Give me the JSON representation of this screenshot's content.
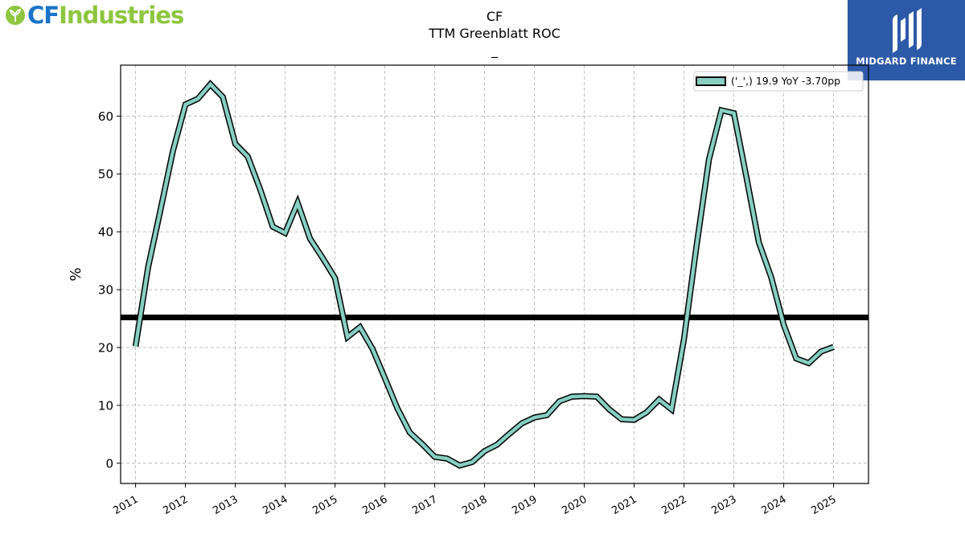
{
  "header": {
    "company_logo_cf": "CF",
    "company_logo_industries": "Industries",
    "badge_text": "MIDGARD FINANCE"
  },
  "colors": {
    "line_fill": "#86cfc2",
    "line_outline": "#000000",
    "reference_line": "#000000",
    "logo_blue": "#1a73c8",
    "logo_green": "#8dc63f",
    "badge_bg": "#2c5aa8"
  },
  "chart_data": {
    "type": "line",
    "title": "CF",
    "subtitle": "TTM Greenblatt ROC",
    "subtitle2": "_",
    "xlabel": "",
    "ylabel": "%",
    "x_ticks": [
      "2011",
      "2012",
      "2013",
      "2014",
      "2015",
      "2016",
      "2017",
      "2018",
      "2019",
      "2020",
      "2021",
      "2022",
      "2023",
      "2024",
      "2025"
    ],
    "y_ticks": [
      0,
      10,
      20,
      30,
      40,
      50,
      60
    ],
    "xlim": [
      2010.7,
      2025.7
    ],
    "ylim": [
      -3.5,
      68.8
    ],
    "grid": true,
    "legend_position": "top-right",
    "reference_line": 25.2,
    "series": [
      {
        "name": "('_',) 19.9 YoY -3.70pp",
        "x": [
          2011.0,
          2011.25,
          2011.5,
          2011.75,
          2012.0,
          2012.25,
          2012.5,
          2012.75,
          2013.0,
          2013.25,
          2013.5,
          2013.75,
          2014.0,
          2014.25,
          2014.5,
          2014.75,
          2015.0,
          2015.25,
          2015.5,
          2015.75,
          2016.0,
          2016.25,
          2016.5,
          2016.75,
          2017.0,
          2017.25,
          2017.5,
          2017.75,
          2018.0,
          2018.25,
          2018.5,
          2018.75,
          2019.0,
          2019.25,
          2019.5,
          2019.75,
          2020.0,
          2020.25,
          2020.5,
          2020.75,
          2021.0,
          2021.25,
          2021.5,
          2021.75,
          2022.0,
          2022.25,
          2022.5,
          2022.75,
          2023.0,
          2023.25,
          2023.5,
          2023.75,
          2024.0,
          2024.25,
          2024.5,
          2024.75,
          2025.0
        ],
        "values": [
          20.2,
          33.8,
          43.8,
          54.0,
          62.0,
          63.0,
          65.5,
          63.3,
          55.2,
          53.0,
          47.3,
          40.9,
          39.8,
          45.0,
          38.8,
          35.5,
          32.0,
          21.8,
          23.5,
          19.8,
          14.7,
          9.5,
          5.3,
          3.3,
          1.1,
          0.8,
          -0.4,
          0.2,
          2.1,
          3.2,
          5.1,
          6.9,
          7.9,
          8.3,
          10.7,
          11.5,
          11.6,
          11.5,
          9.3,
          7.6,
          7.5,
          8.8,
          11.0,
          9.3,
          21.5,
          37.5,
          52.5,
          61.0,
          60.5,
          49.5,
          38.2,
          32.1,
          23.9,
          18.1,
          17.3,
          19.3,
          20.1
        ]
      }
    ]
  }
}
